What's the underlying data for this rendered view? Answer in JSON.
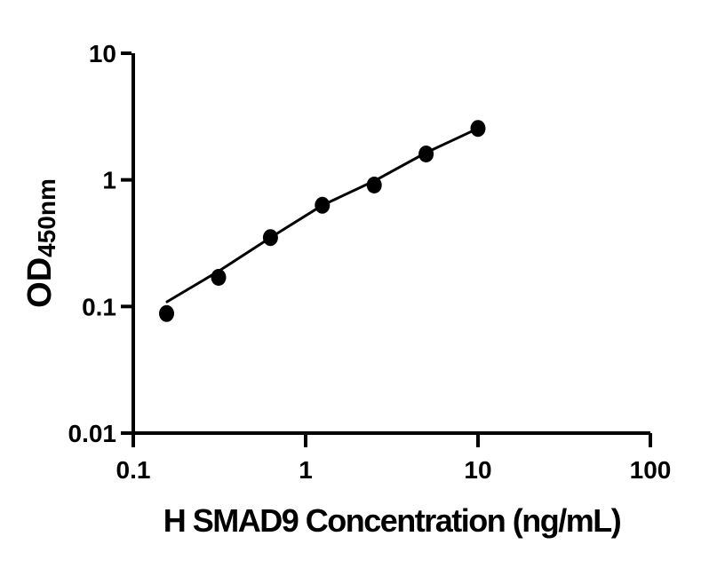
{
  "chart_data": {
    "type": "scatter",
    "title": "",
    "xlabel": "H SMAD9 Concentration (ng/mL)",
    "ylabel": "OD450nm",
    "ylabel_main": "OD",
    "ylabel_sub": "450nm",
    "x_scale": "log",
    "y_scale": "log",
    "xlim": [
      0.1,
      100
    ],
    "ylim": [
      0.01,
      10
    ],
    "x_ticks": [
      0.1,
      1,
      10,
      100
    ],
    "x_tick_labels": [
      "0.1",
      "1",
      "10",
      "100"
    ],
    "y_ticks": [
      0.01,
      0.1,
      1,
      10
    ],
    "y_tick_labels": [
      "0.01",
      "0.1",
      "1",
      "10"
    ],
    "grid": false,
    "legend": false,
    "series": [
      {
        "name": "standard-points",
        "type": "scatter",
        "x": [
          0.156,
          0.3125,
          0.625,
          1.25,
          2.5,
          5,
          10
        ],
        "y": [
          0.088,
          0.17,
          0.35,
          0.63,
          0.91,
          1.6,
          2.55
        ]
      },
      {
        "name": "fit-line",
        "type": "line",
        "x": [
          0.157,
          0.3125,
          0.625,
          1.25,
          2.5,
          5,
          10
        ],
        "y": [
          0.109,
          0.19,
          0.35,
          0.63,
          0.98,
          1.64,
          2.55
        ]
      }
    ],
    "colors": {
      "marker": "#000000",
      "line": "#000000",
      "axis": "#000000",
      "text": "#000000",
      "background": "#ffffff"
    }
  }
}
